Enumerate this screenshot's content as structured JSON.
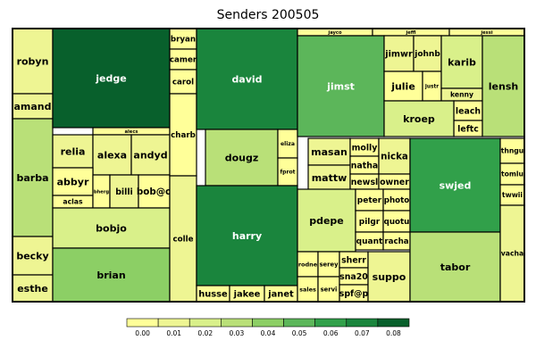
{
  "chart_data": {
    "type": "treemap",
    "title": "Senders 200505",
    "color_scale": {
      "breaks": [
        0.0,
        0.01,
        0.02,
        0.03,
        0.04,
        0.05,
        0.06,
        0.07,
        0.08
      ],
      "tick_labels": [
        "0.00",
        "0.01",
        "0.02",
        "0.03",
        "0.04",
        "0.05",
        "0.06",
        "0.07",
        "0.08"
      ],
      "colors": [
        "#ffff99",
        "#eef593",
        "#d9f08a",
        "#b9e078",
        "#8ccf65",
        "#5cb65a",
        "#31a04a",
        "#1a853d",
        "#08602c"
      ]
    },
    "cells": [
      {
        "label": "robyn",
        "value": 0.012
      },
      {
        "label": "amand",
        "value": 0.01
      },
      {
        "label": "barba",
        "value": 0.03
      },
      {
        "label": "becky",
        "value": 0.012
      },
      {
        "label": "esthe",
        "value": 0.01
      },
      {
        "label": "jedge",
        "value": 0.08
      },
      {
        "label": "alecs",
        "value": 0.005
      },
      {
        "label": "relia",
        "value": 0.01
      },
      {
        "label": "alexa",
        "value": 0.012
      },
      {
        "label": "andyd",
        "value": 0.012
      },
      {
        "label": "abbyr",
        "value": 0.008
      },
      {
        "label": "aclas",
        "value": 0.006
      },
      {
        "label": "bherg",
        "value": 0.003
      },
      {
        "label": "billi",
        "value": 0.01
      },
      {
        "label": "bob@o",
        "value": 0.008
      },
      {
        "label": "bobjo",
        "value": 0.025
      },
      {
        "label": "brian",
        "value": 0.04
      },
      {
        "label": "bryan",
        "value": 0.004
      },
      {
        "label": "camer",
        "value": 0.004
      },
      {
        "label": "carol",
        "value": 0.006
      },
      {
        "label": "charb",
        "value": 0.008
      },
      {
        "label": "colle",
        "value": 0.012
      },
      {
        "label": "david",
        "value": 0.07
      },
      {
        "label": "dougz",
        "value": 0.03
      },
      {
        "label": "eliza",
        "value": 0.004
      },
      {
        "label": "fprot",
        "value": 0.004
      },
      {
        "label": "harry",
        "value": 0.07
      },
      {
        "label": "husse",
        "value": 0.006
      },
      {
        "label": "jakee",
        "value": 0.006
      },
      {
        "label": "janet",
        "value": 0.006
      },
      {
        "label": "jayco",
        "value": 0.004
      },
      {
        "label": "jeffl",
        "value": 0.004
      },
      {
        "label": "jessi",
        "value": 0.004
      },
      {
        "label": "jimst",
        "value": 0.055
      },
      {
        "label": "jimwr",
        "value": 0.01
      },
      {
        "label": "johnb",
        "value": 0.01
      },
      {
        "label": "julie",
        "value": 0.008
      },
      {
        "label": "justr",
        "value": 0.006
      },
      {
        "label": "karib",
        "value": 0.02
      },
      {
        "label": "kenny",
        "value": 0.012
      },
      {
        "label": "leach",
        "value": 0.008
      },
      {
        "label": "leftc",
        "value": 0.008
      },
      {
        "label": "lensh",
        "value": 0.035
      },
      {
        "label": "kroep",
        "value": 0.02
      },
      {
        "label": "masan",
        "value": 0.01
      },
      {
        "label": "mattw",
        "value": 0.01
      },
      {
        "label": "molly",
        "value": 0.008
      },
      {
        "label": "natha",
        "value": 0.008
      },
      {
        "label": "newsl",
        "value": 0.006
      },
      {
        "label": "nicka",
        "value": 0.01
      },
      {
        "label": "owner",
        "value": 0.008
      },
      {
        "label": "pdepe",
        "value": 0.025
      },
      {
        "label": "peter",
        "value": 0.008
      },
      {
        "label": "photo",
        "value": 0.006
      },
      {
        "label": "pilgr",
        "value": 0.008
      },
      {
        "label": "quotu",
        "value": 0.006
      },
      {
        "label": "quant",
        "value": 0.006
      },
      {
        "label": "racha",
        "value": 0.006
      },
      {
        "label": "rodne",
        "value": 0.004
      },
      {
        "label": "serey",
        "value": 0.004
      },
      {
        "label": "sales",
        "value": 0.004
      },
      {
        "label": "servi",
        "value": 0.004
      },
      {
        "label": "sherr",
        "value": 0.008
      },
      {
        "label": "sna20",
        "value": 0.008
      },
      {
        "label": "spf@p",
        "value": 0.008
      },
      {
        "label": "suppo",
        "value": 0.015
      },
      {
        "label": "swjed",
        "value": 0.06
      },
      {
        "label": "tabor",
        "value": 0.035
      },
      {
        "label": "thngu",
        "value": 0.006
      },
      {
        "label": "tomlu",
        "value": 0.006
      },
      {
        "label": "twwii",
        "value": 0.006
      },
      {
        "label": "vacha",
        "value": 0.015
      }
    ]
  }
}
